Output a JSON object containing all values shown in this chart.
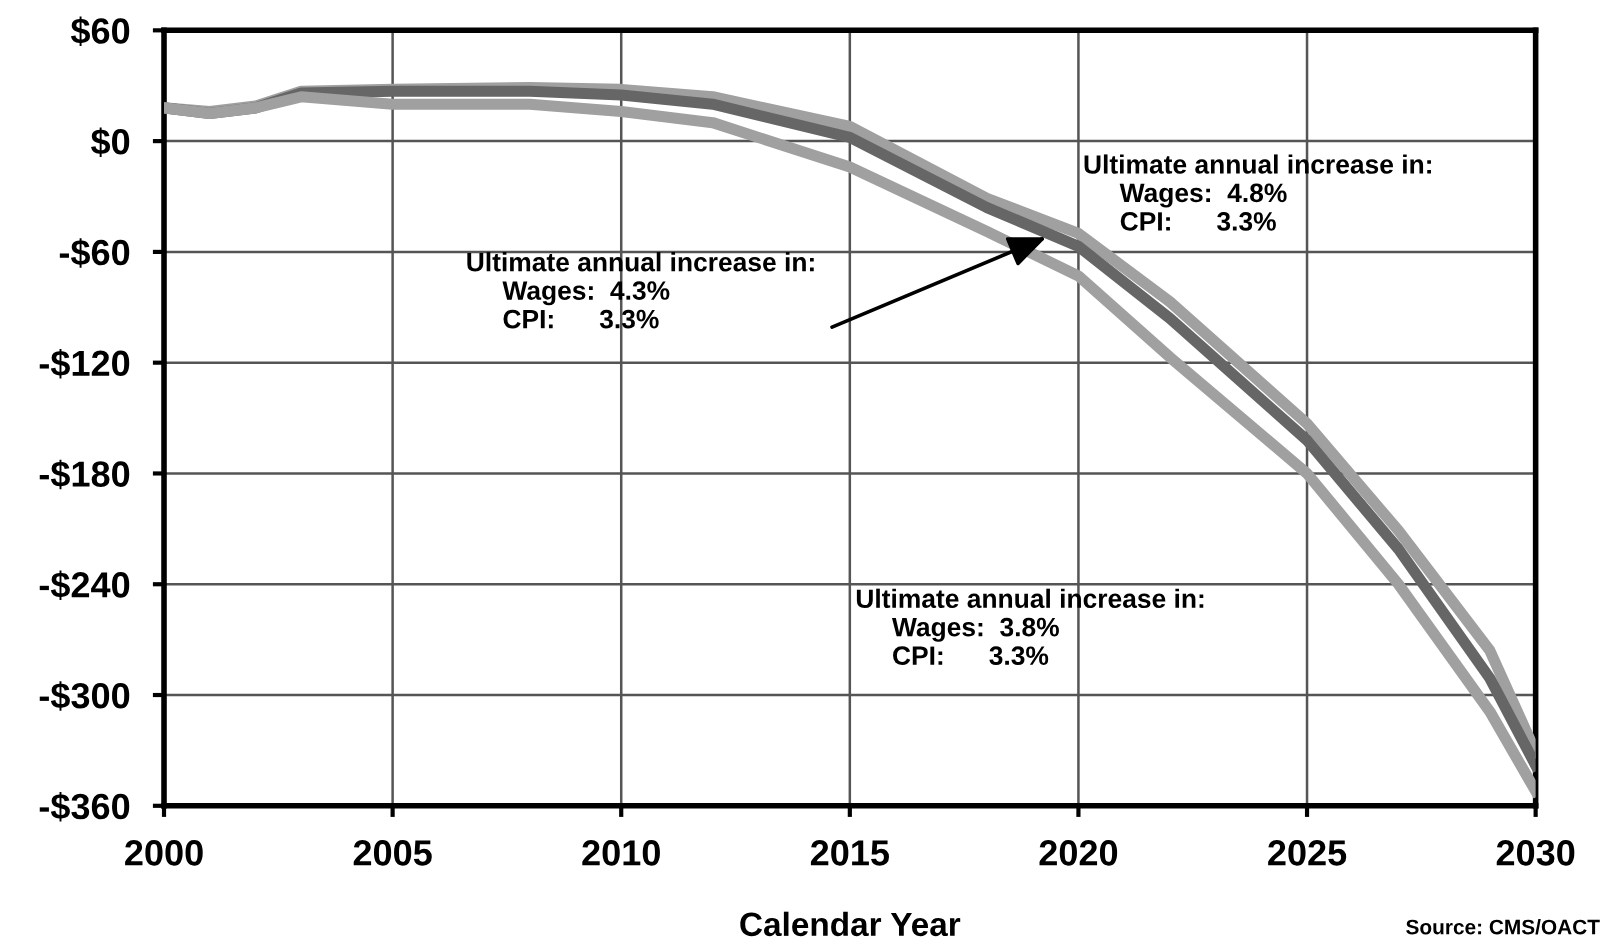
{
  "chart_data": {
    "type": "line",
    "x": [
      2000,
      2001,
      2002,
      2003,
      2005,
      2008,
      2010,
      2012,
      2015,
      2018,
      2020,
      2022,
      2025,
      2027,
      2029,
      2030
    ],
    "series": [
      {
        "color": "#a0a0a0",
        "values": [
          18,
          16,
          19,
          27,
          28,
          29,
          28,
          24,
          8,
          -31,
          -50,
          -87,
          -153,
          -211,
          -276,
          -331
        ]
      },
      {
        "color": "#666666",
        "values": [
          18,
          15,
          18,
          26,
          27,
          27,
          25,
          20,
          2,
          -36,
          -57,
          -96,
          -162,
          -221,
          -291,
          -338
        ]
      },
      {
        "color": "#a0a0a0",
        "values": [
          18,
          15,
          18,
          24,
          20,
          20,
          16,
          10,
          -14,
          -49,
          -73,
          -117,
          -180,
          -240,
          -309,
          -352
        ]
      }
    ],
    "xlim": [
      2000,
      2030
    ],
    "xticks": [
      2000,
      2005,
      2010,
      2015,
      2020,
      2025,
      2030
    ],
    "ylim": [
      -360,
      60
    ],
    "yticks": [
      {
        "value": 60,
        "label": "$60"
      },
      {
        "value": 0,
        "label": "$0"
      },
      {
        "value": -60,
        "label": "-$60"
      },
      {
        "value": -120,
        "label": "-$120"
      },
      {
        "value": -180,
        "label": "-$180"
      },
      {
        "value": -240,
        "label": "-$240"
      },
      {
        "value": -300,
        "label": "-$300"
      },
      {
        "value": -360,
        "label": "-$360"
      }
    ],
    "xlabel": "Calendar Year",
    "annotations": [
      "Ultimate annual increase in:\n     Wages:  4.8%\n     CPI:      3.3%",
      {
        "text": "Ultimate annual increase in:\n     Wages:  4.3%\n     CPI:      3.3%",
        "x": 2019.3,
        "y": -52
      },
      "Ultimate annual increase in:\n     Wages:  3.8%\n     CPI:      3.3%",
      "Source: CMS/OACT"
    ],
    "grid": true,
    "line_style": "solid",
    "marker": "none"
  }
}
